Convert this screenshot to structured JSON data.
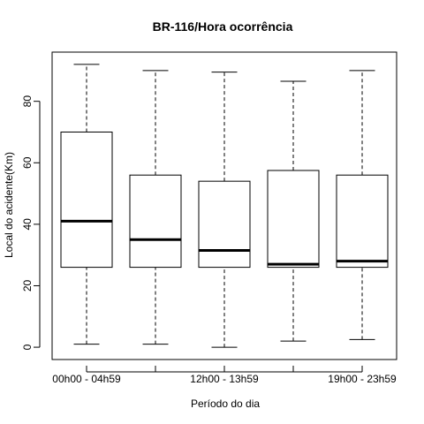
{
  "chart_data": {
    "type": "box",
    "title": "BR-116/Hora ocorrência",
    "xlabel": "Período do dia",
    "ylabel": "Local do acidente(Km)",
    "ylim": [
      -4,
      96
    ],
    "y_ticks": [
      0,
      20,
      40,
      60,
      80
    ],
    "x_tick_labels": [
      "00h00 - 04h59",
      "",
      "12h00 - 13h59",
      "",
      "19h00 - 23h59"
    ],
    "grid": false,
    "legend": "none",
    "boxes": [
      {
        "min": 1.0,
        "q1": 26.0,
        "median": 41.0,
        "q3": 70.0,
        "max": 92.0
      },
      {
        "min": 1.0,
        "q1": 26.0,
        "median": 35.0,
        "q3": 56.0,
        "max": 90.0
      },
      {
        "min": 0.0,
        "q1": 26.0,
        "median": 31.5,
        "q3": 54.0,
        "max": 89.5
      },
      {
        "min": 2.0,
        "q1": 26.0,
        "median": 27.0,
        "q3": 57.5,
        "max": 86.5
      },
      {
        "min": 2.5,
        "q1": 26.0,
        "median": 28.0,
        "q3": 56.0,
        "max": 90.0
      }
    ]
  }
}
